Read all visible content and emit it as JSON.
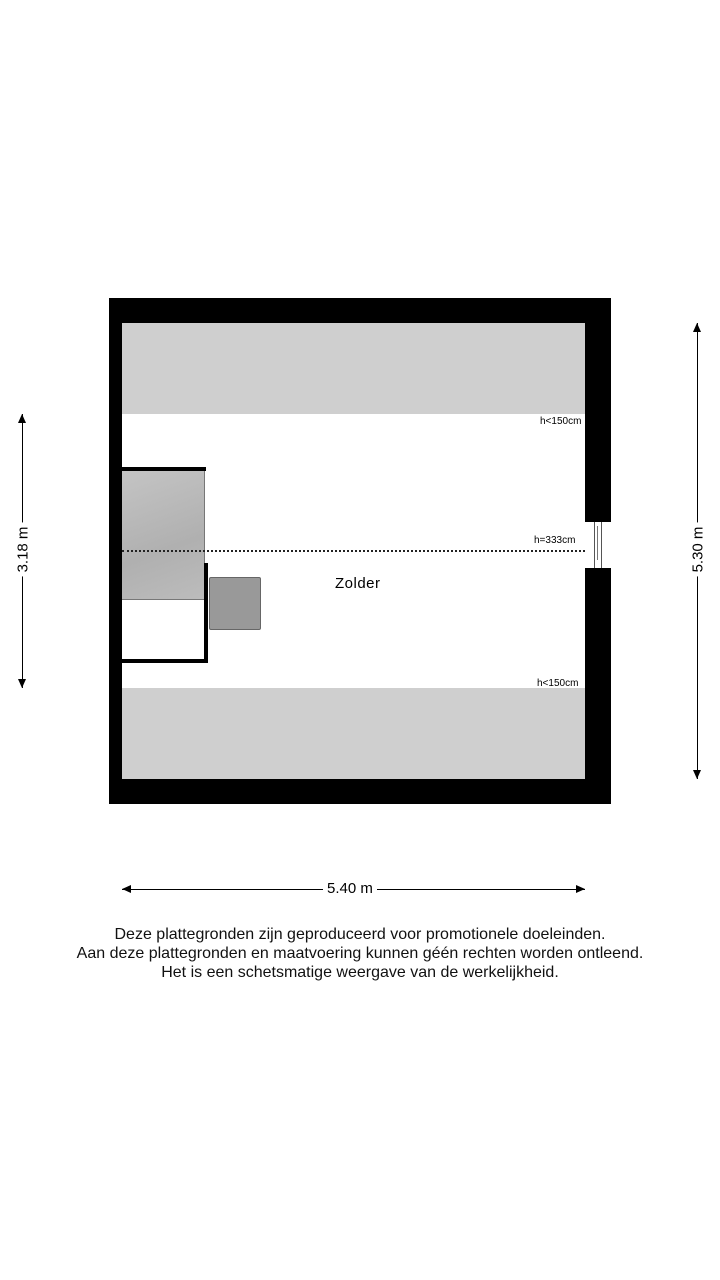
{
  "plan": {
    "room_label": "Zolder",
    "height_labels": [
      "h<150cm",
      "h=333cm",
      "h<150cm"
    ],
    "dimensions": {
      "left": "3.18 m",
      "right": "5.30 m",
      "bottom": "5.40 m"
    }
  },
  "disclaimer": [
    "Deze plattegronden zijn geproduceerd voor promotionele doeleinden.",
    "Aan deze plattegronden en maatvoering kunnen géén rechten worden ontleend.",
    "Het is een schetsmatige weergave van de werkelijkheid."
  ],
  "colors": {
    "wall": "#000000",
    "low_ceiling": "#cfcfcf",
    "stair": "#b8b8b8",
    "furniture": "#999999"
  }
}
